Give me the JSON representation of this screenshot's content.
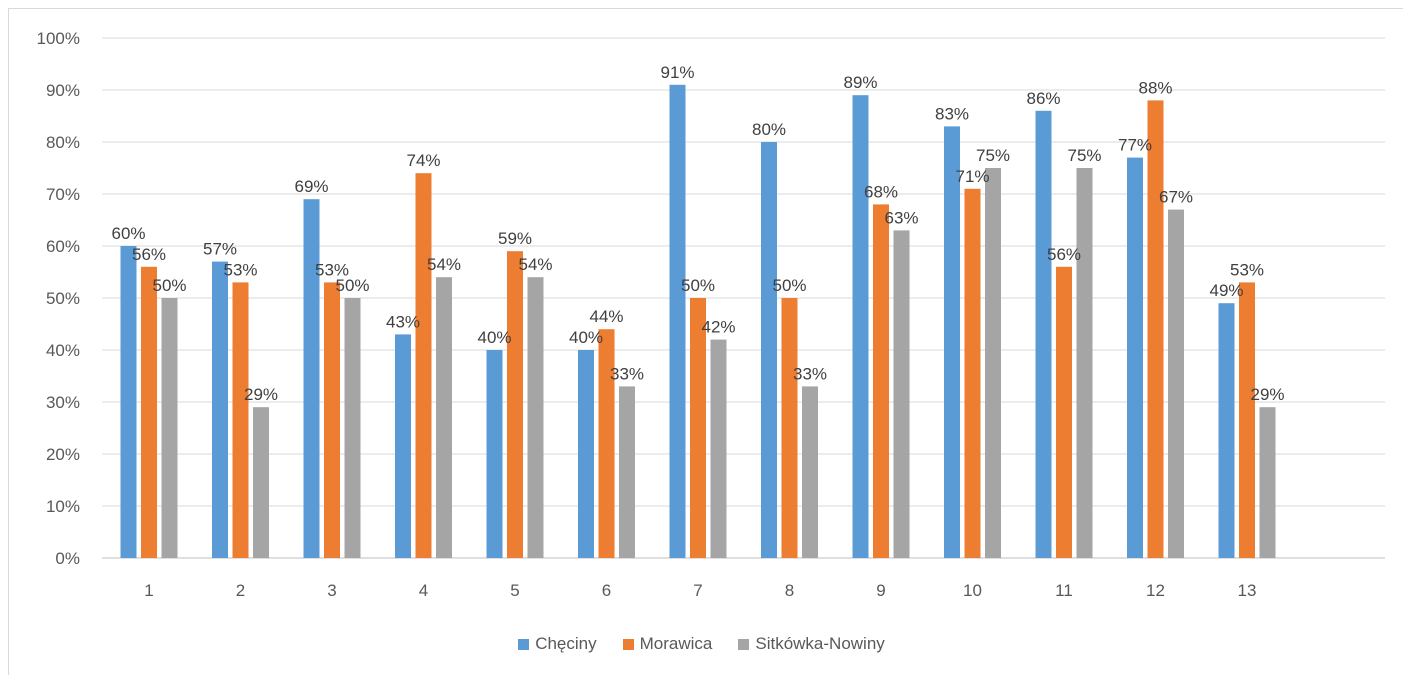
{
  "chart_data": {
    "type": "bar",
    "title": "",
    "xlabel": "",
    "ylabel": "",
    "categories": [
      "1",
      "2",
      "3",
      "4",
      "5",
      "6",
      "7",
      "8",
      "9",
      "10",
      "11",
      "12",
      "13"
    ],
    "ylim": [
      0,
      100
    ],
    "yticks": [
      "0%",
      "10%",
      "20%",
      "30%",
      "40%",
      "50%",
      "60%",
      "70%",
      "80%",
      "90%",
      "100%"
    ],
    "grid": true,
    "legend": "bottom",
    "series": [
      {
        "name": "Chęciny",
        "color": "#5b9bd5",
        "values": [
          60,
          57,
          69,
          43,
          40,
          40,
          91,
          80,
          89,
          83,
          86,
          77,
          49
        ],
        "labels": [
          "60%",
          "57%",
          "69%",
          "43%",
          "40%",
          "40%",
          "91%",
          "80%",
          "89%",
          "83%",
          "86%",
          "77%",
          "49%"
        ]
      },
      {
        "name": "Morawica",
        "color": "#ed7d31",
        "values": [
          56,
          53,
          53,
          74,
          59,
          44,
          50,
          50,
          68,
          71,
          56,
          88,
          53
        ],
        "labels": [
          "56%",
          "53%",
          "53%",
          "74%",
          "59%",
          "44%",
          "50%",
          "50%",
          "68%",
          "71%",
          "56%",
          "88%",
          "53%"
        ]
      },
      {
        "name": "Sitkówka-Nowiny",
        "color": "#a5a5a5",
        "values": [
          50,
          29,
          50,
          54,
          54,
          33,
          42,
          33,
          63,
          75,
          75,
          67,
          29
        ],
        "labels": [
          "50%",
          "29%",
          "50%",
          "54%",
          "54%",
          "33%",
          "42%",
          "33%",
          "63%",
          "75%",
          "75%",
          "67%",
          "29%"
        ]
      }
    ]
  }
}
